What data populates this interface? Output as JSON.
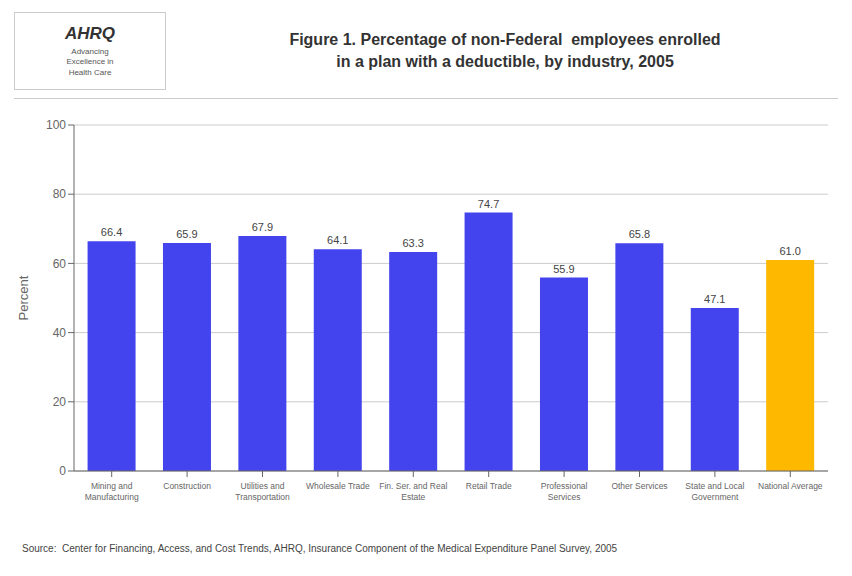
{
  "chart_data": {
    "type": "bar",
    "title": "Figure 1. Percentage of non-Federal  employees enrolled\nin a plan with a deductible, by industry, 2005",
    "categories": [
      "Mining and\nManufacturing",
      "Construction",
      "Utilities and\nTransportation",
      "Wholesale Trade",
      "Fin. Ser. and Real\nEstate",
      "Retail Trade",
      "Professional\nServices",
      "Other Services",
      "State and Local\nGovernment",
      "National Average"
    ],
    "values": [
      66.4,
      65.9,
      67.9,
      64.1,
      63.3,
      74.7,
      55.9,
      65.8,
      47.1,
      61.0
    ],
    "value_labels": [
      "66.4",
      "65.9",
      "67.9",
      "64.1",
      "63.3",
      "74.7",
      "55.9",
      "65.8",
      "47.1",
      "61.0"
    ],
    "data_labels": true,
    "colors": [
      "#4444EE",
      "#4444EE",
      "#4444EE",
      "#4444EE",
      "#4444EE",
      "#4444EE",
      "#4444EE",
      "#4444EE",
      "#4444EE",
      "#FFB800"
    ],
    "ylabel": "Percent",
    "ylim": [
      0,
      100
    ],
    "yticks": [
      0,
      20,
      40,
      60,
      80,
      100
    ],
    "grid": true,
    "annotations": [
      "Source:  Center for Financing, Access, and Cost Trends, AHRQ, Insurance Component of the Medical Expenditure Panel Survey, 2005",
      "AHRQ",
      "Advancing\nExcellence in\nHealth Care"
    ]
  }
}
